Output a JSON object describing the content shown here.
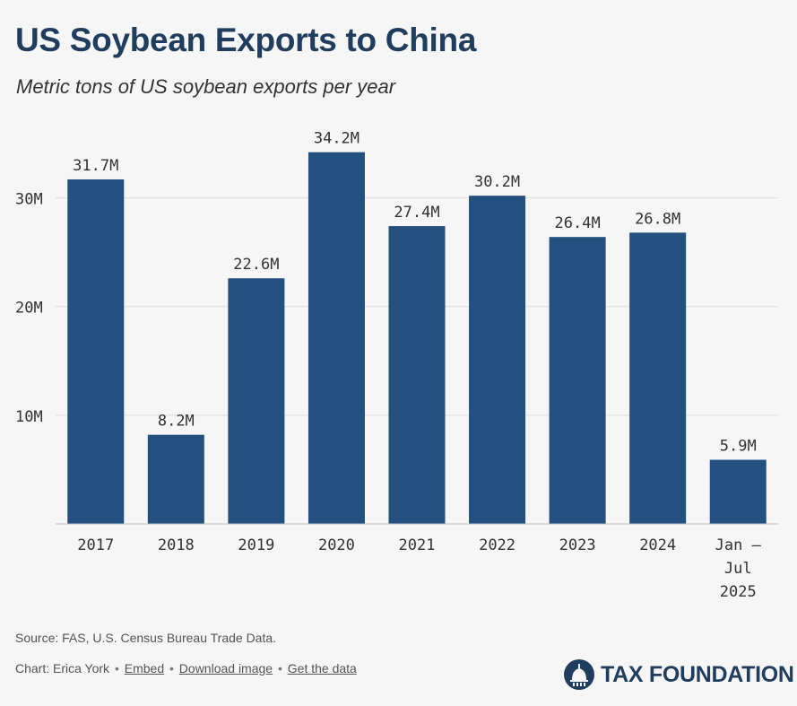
{
  "chart_data": {
    "type": "bar",
    "title": "US Soybean Exports to China",
    "subtitle": "Metric tons of US soybean exports per year",
    "categories": [
      "2017",
      "2018",
      "2019",
      "2020",
      "2021",
      "2022",
      "2023",
      "2024",
      "Jan – Jul 2025"
    ],
    "category_lines": [
      [
        "2017"
      ],
      [
        "2018"
      ],
      [
        "2019"
      ],
      [
        "2020"
      ],
      [
        "2021"
      ],
      [
        "2022"
      ],
      [
        "2023"
      ],
      [
        "2024"
      ],
      [
        "Jan –",
        "Jul",
        "2025"
      ]
    ],
    "values": [
      31.7,
      8.2,
      22.6,
      34.2,
      27.4,
      30.2,
      26.4,
      26.8,
      5.9
    ],
    "value_labels": [
      "31.7M",
      "8.2M",
      "22.6M",
      "34.2M",
      "27.4M",
      "30.2M",
      "26.4M",
      "26.8M",
      "5.9M"
    ],
    "unit": "million metric tons",
    "yticks": [
      10,
      20,
      30
    ],
    "ytick_labels": [
      "10M",
      "20M",
      "30M"
    ],
    "ylim": [
      0,
      35
    ],
    "grid": true,
    "xlabel": "",
    "ylabel": "",
    "bar_color": "#24507f"
  },
  "footer": {
    "source": "Source: FAS, U.S. Census Bureau Trade Data.",
    "credit": "Chart: Erica York",
    "embed": "Embed",
    "download": "Download image",
    "get_data": "Get the data",
    "sep": "•",
    "logo_text": "TAX FOUNDATION"
  },
  "colors": {
    "title": "#1f3d5f",
    "axis_text": "#333333",
    "grid": "#dcdcdc"
  }
}
